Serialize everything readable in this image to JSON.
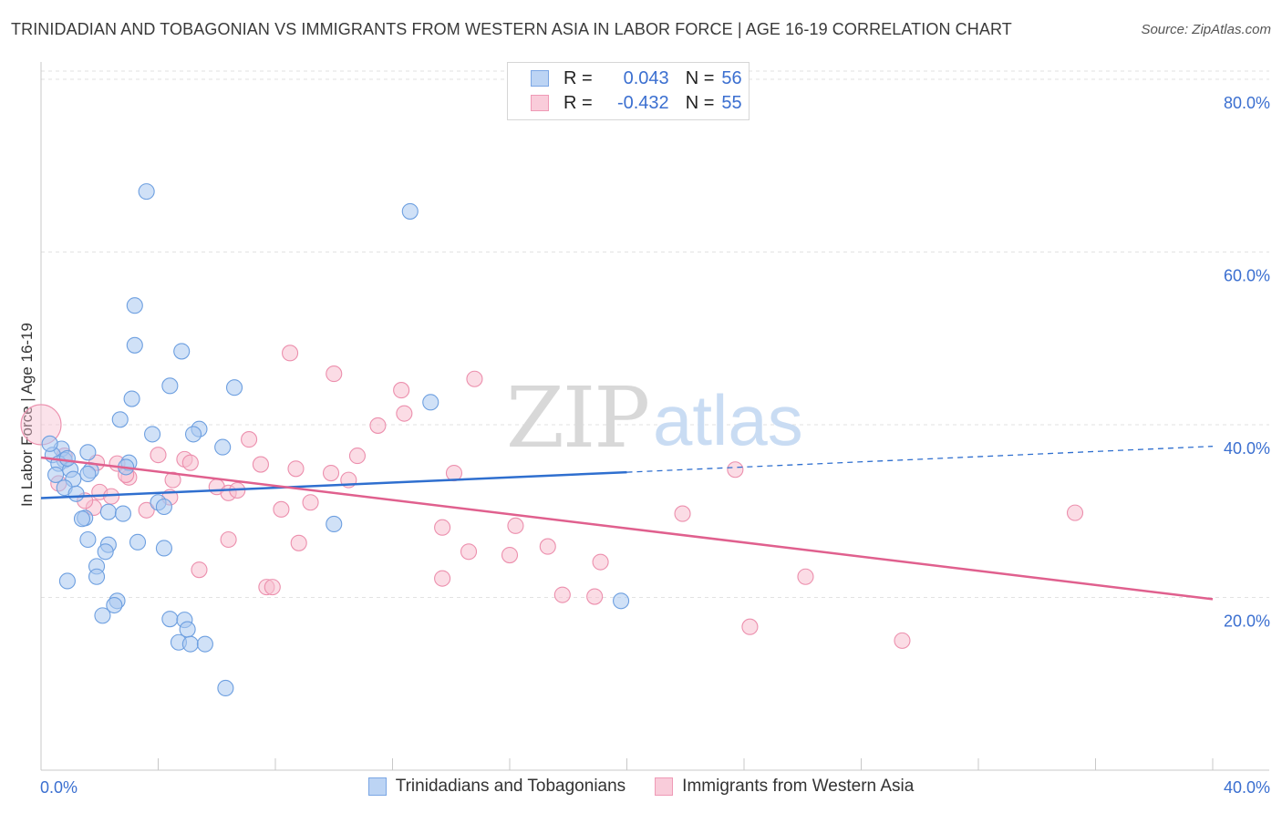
{
  "title": "TRINIDADIAN AND TOBAGONIAN VS IMMIGRANTS FROM WESTERN ASIA IN LABOR FORCE | AGE 16-19 CORRELATION CHART",
  "source": "Source: ZipAtlas.com",
  "watermark": {
    "zip": "ZIP",
    "atlas": "atlas"
  },
  "legend_top": {
    "r_label": "R =",
    "n_label": "N =",
    "rows": [
      {
        "r": "0.043",
        "n": "56"
      },
      {
        "r": "-0.432",
        "n": "55"
      }
    ]
  },
  "colors": {
    "blue_fill": "#a9c8f0",
    "blue_stroke": "#6d9fe0",
    "blue_line": "#2f6fcf",
    "pink_fill": "#f7bfd0",
    "pink_stroke": "#ec8fad",
    "pink_line": "#e0608e",
    "axis_label": "#3b6fd0",
    "grid": "#e2e2e2"
  },
  "chart_data": {
    "type": "scatter",
    "title": "TRINIDADIAN AND TOBAGONIAN VS IMMIGRANTS FROM WESTERN ASIA IN LABOR FORCE | AGE 16-19 CORRELATION CHART",
    "xlabel": "",
    "ylabel": "In Labor Force | Age 16-19",
    "xlim": [
      0,
      40
    ],
    "ylim": [
      0,
      82
    ],
    "x_tick_labels": {
      "left": "0.0%",
      "right": "40.0%"
    },
    "y_ticks": [
      {
        "value": 20,
        "label": "20.0%"
      },
      {
        "value": 40,
        "label": "40.0%"
      },
      {
        "value": 60,
        "label": "60.0%"
      },
      {
        "value": 80,
        "label": "80.0%"
      }
    ],
    "grid": true,
    "legend": "bottom",
    "series": [
      {
        "name": "Trinidadians and Tobagonians",
        "color": "blue",
        "trend": {
          "x0": 0,
          "y0": 31.5,
          "x1": 20,
          "y1": 34.5,
          "dash_x1": 40,
          "dash_y1": 37.5
        },
        "points": [
          [
            3.6,
            67
          ],
          [
            12.6,
            64.7
          ],
          [
            3.2,
            53.8
          ],
          [
            3.2,
            49.2
          ],
          [
            4.8,
            48.5
          ],
          [
            4.4,
            44.5
          ],
          [
            6.6,
            44.3
          ],
          [
            3.1,
            43
          ],
          [
            13.3,
            42.6
          ],
          [
            2.7,
            40.6
          ],
          [
            5.4,
            39.5
          ],
          [
            3.8,
            38.9
          ],
          [
            5.2,
            38.9
          ],
          [
            6.2,
            37.4
          ],
          [
            0.7,
            37.2
          ],
          [
            0.4,
            36.5
          ],
          [
            0.8,
            35.9
          ],
          [
            0.6,
            35.5
          ],
          [
            3.0,
            35.6
          ],
          [
            1.0,
            34.8
          ],
          [
            1.7,
            34.7
          ],
          [
            0.5,
            34.2
          ],
          [
            2.9,
            35.1
          ],
          [
            1.1,
            33.7
          ],
          [
            1.6,
            34.3
          ],
          [
            0.8,
            32.7
          ],
          [
            1.2,
            32
          ],
          [
            4.0,
            31
          ],
          [
            4.2,
            30.5
          ],
          [
            2.3,
            29.9
          ],
          [
            2.8,
            29.7
          ],
          [
            1.5,
            29.2
          ],
          [
            1.4,
            29.1
          ],
          [
            10.0,
            28.5
          ],
          [
            1.6,
            26.7
          ],
          [
            3.3,
            26.4
          ],
          [
            2.3,
            26.1
          ],
          [
            4.2,
            25.7
          ],
          [
            2.2,
            25.3
          ],
          [
            1.9,
            23.6
          ],
          [
            1.9,
            22.4
          ],
          [
            0.9,
            21.9
          ],
          [
            2.6,
            19.6
          ],
          [
            2.5,
            19.1
          ],
          [
            19.8,
            19.6
          ],
          [
            2.1,
            17.9
          ],
          [
            4.4,
            17.5
          ],
          [
            4.9,
            17.4
          ],
          [
            5.0,
            16.3
          ],
          [
            4.7,
            14.8
          ],
          [
            5.1,
            14.6
          ],
          [
            5.6,
            14.6
          ],
          [
            6.3,
            9.5
          ],
          [
            0.3,
            37.8
          ],
          [
            0.9,
            36.1
          ],
          [
            1.6,
            36.8
          ]
        ]
      },
      {
        "name": "Immigrants from Western Asia",
        "color": "pink",
        "trend": {
          "x0": 0,
          "y0": 36.2,
          "x1": 40,
          "y1": 19.8
        },
        "points": [
          [
            0.0,
            40.0
          ],
          [
            8.5,
            48.3
          ],
          [
            10.0,
            45.9
          ],
          [
            14.8,
            45.3
          ],
          [
            12.3,
            44
          ],
          [
            12.4,
            41.3
          ],
          [
            11.5,
            39.9
          ],
          [
            7.1,
            38.3
          ],
          [
            10.8,
            36.4
          ],
          [
            4.0,
            36.5
          ],
          [
            4.9,
            36
          ],
          [
            5.1,
            35.6
          ],
          [
            0.8,
            36.4
          ],
          [
            1.9,
            35.6
          ],
          [
            2.6,
            35.5
          ],
          [
            7.5,
            35.4
          ],
          [
            8.7,
            34.9
          ],
          [
            9.9,
            34.4
          ],
          [
            10.5,
            33.6
          ],
          [
            14.1,
            34.4
          ],
          [
            23.7,
            34.8
          ],
          [
            3.0,
            33.9
          ],
          [
            4.5,
            33.6
          ],
          [
            6.0,
            32.8
          ],
          [
            6.4,
            32.1
          ],
          [
            6.7,
            32.4
          ],
          [
            2.0,
            32.2
          ],
          [
            2.4,
            31.7
          ],
          [
            4.4,
            31.6
          ],
          [
            9.2,
            31
          ],
          [
            1.8,
            30.4
          ],
          [
            3.6,
            30.1
          ],
          [
            8.2,
            30.2
          ],
          [
            21.9,
            29.7
          ],
          [
            35.3,
            29.8
          ],
          [
            13.7,
            28.1
          ],
          [
            16.2,
            28.3
          ],
          [
            6.4,
            26.7
          ],
          [
            8.8,
            26.3
          ],
          [
            17.3,
            25.9
          ],
          [
            14.6,
            25.3
          ],
          [
            16.0,
            24.9
          ],
          [
            19.1,
            24.1
          ],
          [
            5.4,
            23.2
          ],
          [
            26.1,
            22.4
          ],
          [
            13.7,
            22.2
          ],
          [
            7.7,
            21.2
          ],
          [
            7.9,
            21.2
          ],
          [
            17.8,
            20.3
          ],
          [
            18.9,
            20.1
          ],
          [
            24.2,
            16.6
          ],
          [
            29.4,
            15.0
          ],
          [
            1.5,
            31.2
          ],
          [
            0.6,
            33.2
          ],
          [
            2.9,
            34.2
          ]
        ]
      }
    ]
  }
}
